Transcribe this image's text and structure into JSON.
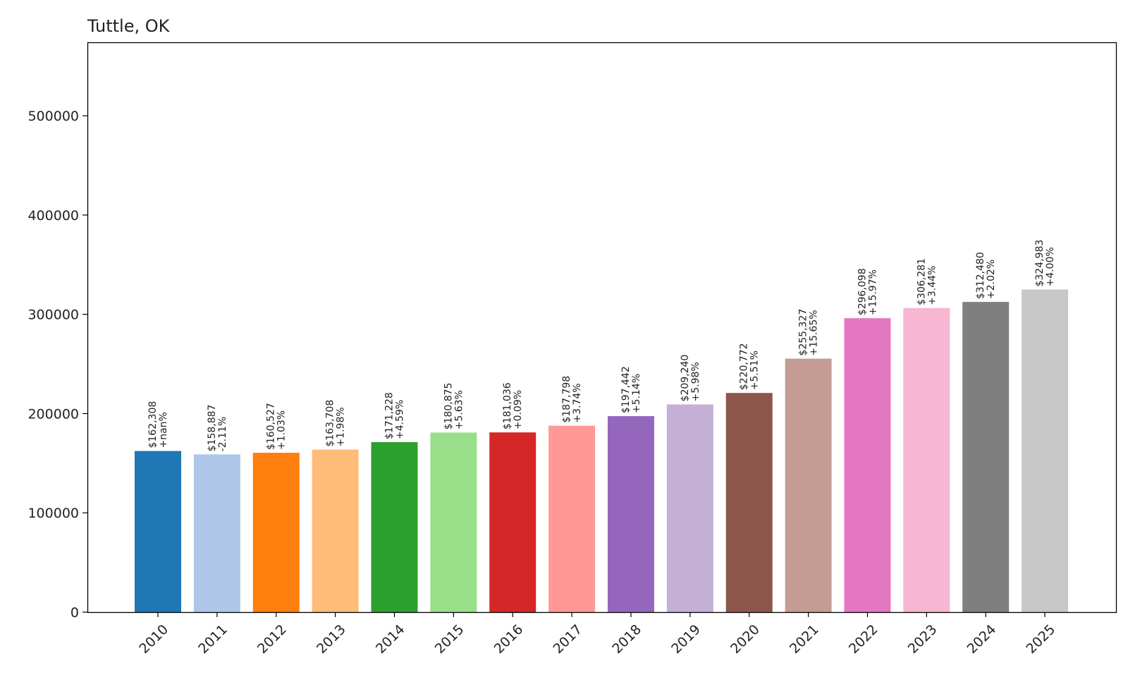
{
  "chart_data": {
    "type": "bar",
    "title": "Tuttle, OK",
    "xlabel": "",
    "ylabel": "",
    "categories": [
      "2010",
      "2011",
      "2012",
      "2013",
      "2014",
      "2015",
      "2016",
      "2017",
      "2018",
      "2019",
      "2020",
      "2021",
      "2022",
      "2023",
      "2024",
      "2025"
    ],
    "values": [
      162308,
      158887,
      160527,
      163708,
      171228,
      180875,
      181036,
      187798,
      197442,
      209240,
      220772,
      255327,
      296098,
      306281,
      312480,
      324983
    ],
    "value_labels": [
      "$162,308",
      "$158,887",
      "$160,527",
      "$163,708",
      "$171,228",
      "$180,875",
      "$181,036",
      "$187,798",
      "$197,442",
      "$209,240",
      "$220,772",
      "$255,327",
      "$296,098",
      "$306,281",
      "$312,480",
      "$324,983"
    ],
    "change_labels": [
      "+nan%",
      "-2.11%",
      "+1.03%",
      "+1.98%",
      "+4.59%",
      "+5.63%",
      "+0.09%",
      "+3.74%",
      "+5.14%",
      "+5.98%",
      "+5.51%",
      "+15.65%",
      "+15.97%",
      "+3.44%",
      "+2.02%",
      "+4.00%"
    ],
    "colors": [
      "#1f77b4",
      "#aec7e8",
      "#ff7f0e",
      "#ffbb78",
      "#2ca02c",
      "#98df8a",
      "#d62728",
      "#ff9896",
      "#9467bd",
      "#c5b0d5",
      "#8c564b",
      "#c49c94",
      "#e377c2",
      "#f7b6d2",
      "#7f7f7f",
      "#c7c7c7"
    ],
    "ylim": [
      0,
      574000
    ],
    "yticks": [
      0,
      100000,
      200000,
      300000,
      400000,
      500000
    ],
    "ytick_labels": [
      "0",
      "100000",
      "200000",
      "300000",
      "400000",
      "500000"
    ],
    "grid": false,
    "legend": "none"
  }
}
